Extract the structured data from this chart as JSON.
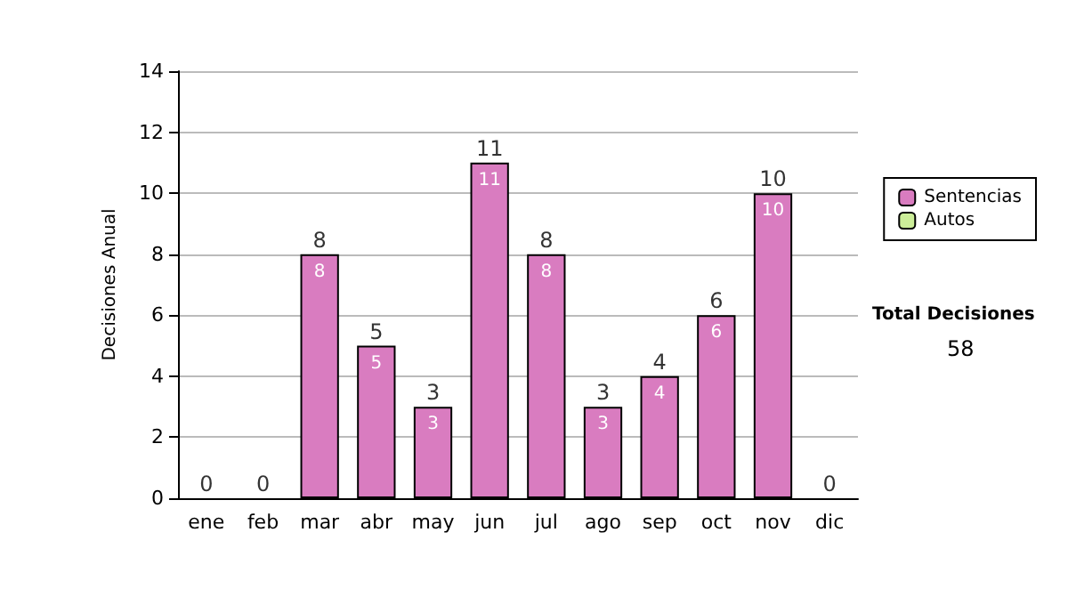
{
  "chart_data": {
    "type": "bar",
    "stacked": true,
    "ylabel": "Decisiones Anual",
    "categories": [
      "ene",
      "feb",
      "mar",
      "abr",
      "may",
      "jun",
      "jul",
      "ago",
      "sep",
      "oct",
      "nov",
      "dic"
    ],
    "series": [
      {
        "name": "Sentencias",
        "color": "#d97cc0",
        "values": [
          0,
          0,
          8,
          5,
          3,
          11,
          8,
          3,
          4,
          6,
          10,
          0
        ],
        "value_labels": [
          null,
          null,
          "8",
          "5",
          "3",
          "11",
          "8",
          "3",
          "4",
          "6",
          "10",
          null
        ]
      },
      {
        "name": "Autos",
        "color": "#ccee99",
        "values": [
          0,
          0,
          0,
          0,
          0,
          0,
          0,
          0,
          0,
          0,
          0,
          0
        ]
      }
    ],
    "totals": [
      "0",
      "0",
      "8",
      "5",
      "3",
      "11",
      "8",
      "3",
      "4",
      "6",
      "10",
      "0"
    ],
    "ylim": [
      0,
      14
    ],
    "yticks": [
      0,
      2,
      4,
      6,
      8,
      10,
      12,
      14
    ],
    "grid": "y",
    "legend": "right",
    "annotations": [
      "Total Decisiones",
      "58"
    ]
  }
}
